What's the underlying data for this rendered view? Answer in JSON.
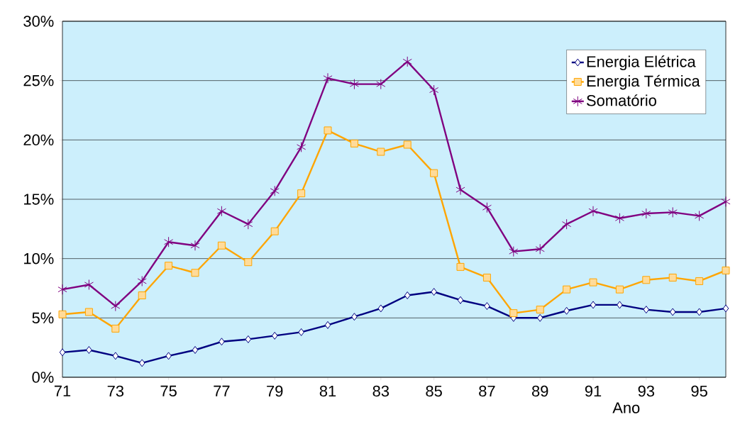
{
  "chart_data": {
    "type": "line",
    "xlabel": "Ano",
    "x": [
      71,
      72,
      73,
      74,
      75,
      76,
      77,
      78,
      79,
      80,
      81,
      82,
      83,
      84,
      85,
      86,
      87,
      88,
      89,
      90,
      91,
      92,
      93,
      94,
      95,
      96
    ],
    "xlim": [
      71,
      96
    ],
    "xticks": [
      71,
      73,
      75,
      77,
      79,
      81,
      83,
      85,
      87,
      89,
      91,
      93,
      95
    ],
    "ylim": [
      0,
      30
    ],
    "yticks": [
      {
        "value": 0,
        "label": "0%"
      },
      {
        "value": 5,
        "label": "5%"
      },
      {
        "value": 10,
        "label": "10%"
      },
      {
        "value": 15,
        "label": "15%"
      },
      {
        "value": 20,
        "label": "20%"
      },
      {
        "value": 25,
        "label": "25%"
      },
      {
        "value": 30,
        "label": "30%"
      }
    ],
    "grid": "y",
    "legend": "top right",
    "line_style": "solid",
    "series": [
      {
        "name": "Energia Elétrica",
        "color": "#000080",
        "marker": "diamond",
        "values": [
          2.1,
          2.3,
          1.8,
          1.2,
          1.8,
          2.3,
          3.0,
          3.2,
          3.5,
          3.8,
          4.4,
          5.1,
          5.8,
          6.9,
          7.2,
          6.5,
          6.0,
          5.0,
          5.0,
          5.6,
          6.1,
          6.1,
          5.7,
          5.5,
          5.5,
          5.8
        ]
      },
      {
        "name": "Energia Térmica",
        "color": "#ffa500",
        "marker": "square",
        "values": [
          5.3,
          5.5,
          4.1,
          6.9,
          9.4,
          8.8,
          11.1,
          9.7,
          12.3,
          15.5,
          20.8,
          19.7,
          19.0,
          19.6,
          17.2,
          9.3,
          8.4,
          5.4,
          5.7,
          7.4,
          8.0,
          7.4,
          8.2,
          8.4,
          8.1,
          9.0
        ]
      },
      {
        "name": "Somatório",
        "color": "#800080",
        "marker": "cross",
        "values": [
          7.4,
          7.8,
          6.0,
          8.1,
          11.4,
          11.1,
          14.0,
          12.9,
          15.7,
          19.4,
          25.2,
          24.7,
          24.7,
          26.6,
          24.2,
          15.8,
          14.3,
          10.6,
          10.8,
          12.9,
          14.0,
          13.4,
          13.8,
          13.9,
          13.6,
          14.8
        ]
      }
    ]
  }
}
